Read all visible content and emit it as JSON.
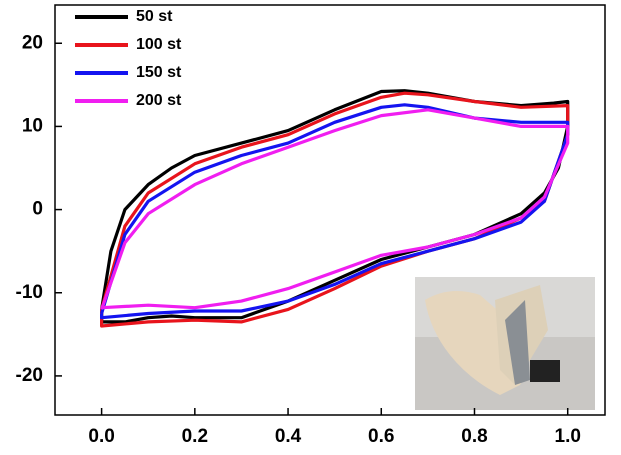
{
  "chart_data": {
    "type": "line",
    "xlim": [
      -0.1,
      1.08
    ],
    "ylim": [
      -24.7,
      24.6
    ],
    "xticks": [
      {
        "value": 0,
        "label": "0.0"
      },
      0.2,
      0.4,
      0.6,
      0.8,
      {
        "value": 1,
        "label": "1.0"
      }
    ],
    "yticks": [
      -20,
      -10,
      0,
      10,
      20
    ],
    "series": [
      {
        "name": "50 st",
        "color": "#000000",
        "x": [
          0,
          0.02,
          0.05,
          0.1,
          0.15,
          0.2,
          0.3,
          0.4,
          0.5,
          0.6,
          0.65,
          0.7,
          0.8,
          0.9,
          0.97,
          1.0,
          1.0,
          0.98,
          0.95,
          0.9,
          0.8,
          0.7,
          0.6,
          0.5,
          0.4,
          0.3,
          0.2,
          0.15,
          0.1,
          0.05,
          0,
          0
        ],
        "values": [
          -12,
          -5,
          0,
          3,
          5,
          6.5,
          8,
          9.5,
          12,
          14.2,
          14.3,
          14,
          13,
          12.5,
          12.8,
          13,
          10,
          5,
          2,
          -0.5,
          -3,
          -4.5,
          -6,
          -8.5,
          -11,
          -13,
          -13,
          -12.8,
          -13,
          -13.5,
          -13.5,
          -12
        ]
      },
      {
        "name": "100 st",
        "color": "#e8141c",
        "x": [
          0,
          0.05,
          0.1,
          0.2,
          0.3,
          0.4,
          0.5,
          0.6,
          0.65,
          0.7,
          0.8,
          0.9,
          1.0,
          1.0,
          0.95,
          0.9,
          0.8,
          0.7,
          0.6,
          0.5,
          0.4,
          0.3,
          0.2,
          0.1,
          0,
          0
        ],
        "values": [
          -12,
          -2,
          2,
          5.5,
          7.5,
          9,
          11.5,
          13.5,
          14,
          13.8,
          13,
          12.3,
          12.5,
          9,
          1,
          -1,
          -3.5,
          -5,
          -6.8,
          -9.5,
          -12,
          -13.5,
          -13.3,
          -13.5,
          -14,
          -12
        ]
      },
      {
        "name": "150 st",
        "color": "#1414f0",
        "x": [
          0,
          0.05,
          0.1,
          0.2,
          0.3,
          0.4,
          0.5,
          0.6,
          0.65,
          0.7,
          0.8,
          0.9,
          1.0,
          1.0,
          0.95,
          0.9,
          0.8,
          0.7,
          0.6,
          0.5,
          0.4,
          0.3,
          0.2,
          0.1,
          0,
          0
        ],
        "values": [
          -12.5,
          -3,
          1,
          4.5,
          6.5,
          8,
          10.5,
          12.3,
          12.6,
          12.3,
          11,
          10.5,
          10.5,
          9,
          1,
          -1.5,
          -3.5,
          -5,
          -6.5,
          -9,
          -11,
          -12.2,
          -12.2,
          -12.5,
          -13,
          -12.5
        ]
      },
      {
        "name": "200 st",
        "color": "#f01ef0",
        "x": [
          0,
          0.05,
          0.1,
          0.2,
          0.3,
          0.4,
          0.5,
          0.6,
          0.7,
          0.8,
          0.9,
          1.0,
          1.0,
          0.95,
          0.9,
          0.8,
          0.7,
          0.6,
          0.5,
          0.4,
          0.3,
          0.2,
          0.1,
          0
        ],
        "values": [
          -12,
          -4,
          -0.5,
          3,
          5.5,
          7.5,
          9.5,
          11.3,
          12,
          11,
          10,
          10,
          8,
          1.5,
          -1,
          -3,
          -4.5,
          -5.5,
          -7.5,
          -9.5,
          -11,
          -11.8,
          -11.5,
          -11.8
        ]
      }
    ]
  }
}
